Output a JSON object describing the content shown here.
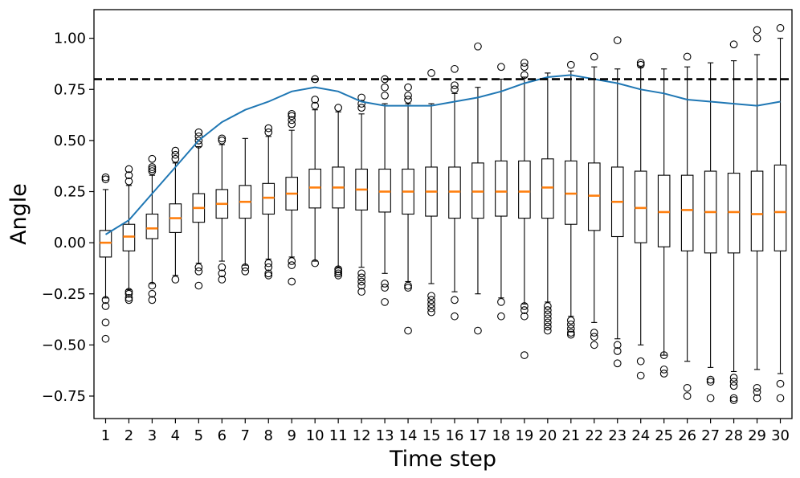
{
  "chart_data": {
    "type": "box",
    "xlabel": "Time step",
    "ylabel": "Angle",
    "ylim": [
      -0.86,
      1.14
    ],
    "xlim": [
      0.5,
      30.5
    ],
    "grid": false,
    "x_ticks": [
      1,
      2,
      3,
      4,
      5,
      6,
      7,
      8,
      9,
      10,
      11,
      12,
      13,
      14,
      15,
      16,
      17,
      18,
      19,
      20,
      21,
      22,
      23,
      24,
      25,
      26,
      27,
      28,
      29,
      30
    ],
    "y_ticks": [
      -0.75,
      -0.5,
      -0.25,
      0.0,
      0.25,
      0.5,
      0.75,
      1.0
    ],
    "y_tick_labels": [
      "−0.75",
      "−0.50",
      "−0.25",
      "0.00",
      "0.25",
      "0.50",
      "0.75",
      "1.00"
    ],
    "colors": {
      "box": "#000000",
      "median": "#ff7f0e",
      "line": "#1f77b4",
      "reference": "#000000"
    },
    "reference_line": {
      "y": 0.8,
      "style": "dashed"
    },
    "line_series": {
      "x": [
        1,
        2,
        3,
        4,
        5,
        6,
        7,
        8,
        9,
        10,
        11,
        12,
        13,
        14,
        15,
        16,
        17,
        18,
        19,
        20,
        21,
        22,
        23,
        24,
        25,
        26,
        27,
        28,
        29,
        30
      ],
      "y": [
        0.04,
        0.11,
        0.24,
        0.37,
        0.5,
        0.59,
        0.65,
        0.69,
        0.74,
        0.76,
        0.74,
        0.69,
        0.67,
        0.67,
        0.67,
        0.69,
        0.71,
        0.74,
        0.78,
        0.81,
        0.82,
        0.8,
        0.78,
        0.75,
        0.73,
        0.7,
        0.69,
        0.68,
        0.67,
        0.69
      ]
    },
    "boxes": [
      {
        "x": 1,
        "q1": -0.07,
        "median": 0.0,
        "q3": 0.06,
        "whislo": -0.27,
        "whishi": 0.26,
        "fliers": [
          0.31,
          0.32,
          -0.28,
          -0.31,
          -0.39,
          -0.47
        ]
      },
      {
        "x": 2,
        "q1": -0.04,
        "median": 0.03,
        "q3": 0.09,
        "whislo": -0.23,
        "whishi": 0.28,
        "fliers": [
          0.3,
          0.33,
          0.36,
          -0.24,
          -0.25,
          -0.27,
          -0.28
        ]
      },
      {
        "x": 3,
        "q1": 0.02,
        "median": 0.07,
        "q3": 0.14,
        "whislo": -0.2,
        "whishi": 0.33,
        "fliers": [
          0.35,
          0.36,
          0.37,
          0.41,
          -0.21,
          -0.25,
          -0.28
        ]
      },
      {
        "x": 4,
        "q1": 0.05,
        "median": 0.12,
        "q3": 0.19,
        "whislo": -0.16,
        "whishi": 0.39,
        "fliers": [
          0.41,
          0.43,
          0.45,
          -0.18
        ]
      },
      {
        "x": 5,
        "q1": 0.1,
        "median": 0.17,
        "q3": 0.24,
        "whislo": -0.1,
        "whishi": 0.47,
        "fliers": [
          0.48,
          0.5,
          0.52,
          0.54,
          -0.12,
          -0.14,
          -0.21
        ]
      },
      {
        "x": 6,
        "q1": 0.12,
        "median": 0.19,
        "q3": 0.26,
        "whislo": -0.09,
        "whishi": 0.48,
        "fliers": [
          0.5,
          0.51,
          -0.12,
          -0.15,
          -0.18
        ]
      },
      {
        "x": 7,
        "q1": 0.12,
        "median": 0.2,
        "q3": 0.28,
        "whislo": -0.11,
        "whishi": 0.51,
        "fliers": [
          -0.12,
          -0.14
        ]
      },
      {
        "x": 8,
        "q1": 0.14,
        "median": 0.22,
        "q3": 0.29,
        "whislo": -0.08,
        "whishi": 0.52,
        "fliers": [
          0.54,
          0.56,
          -0.1,
          -0.12,
          -0.15,
          -0.16
        ]
      },
      {
        "x": 9,
        "q1": 0.16,
        "median": 0.24,
        "q3": 0.32,
        "whislo": -0.07,
        "whishi": 0.55,
        "fliers": [
          0.58,
          0.6,
          0.62,
          0.63,
          -0.09,
          -0.11,
          -0.19
        ]
      },
      {
        "x": 10,
        "q1": 0.17,
        "median": 0.27,
        "q3": 0.36,
        "whislo": -0.09,
        "whishi": 0.65,
        "fliers": [
          0.67,
          0.7,
          0.8,
          -0.1
        ]
      },
      {
        "x": 11,
        "q1": 0.17,
        "median": 0.27,
        "q3": 0.37,
        "whislo": -0.12,
        "whishi": 0.64,
        "fliers": [
          0.66,
          -0.13,
          -0.14,
          -0.15,
          -0.16
        ]
      },
      {
        "x": 12,
        "q1": 0.16,
        "median": 0.26,
        "q3": 0.36,
        "whislo": -0.12,
        "whishi": 0.63,
        "fliers": [
          0.66,
          0.68,
          0.71,
          -0.15,
          -0.17,
          -0.19,
          -0.21,
          -0.24
        ]
      },
      {
        "x": 13,
        "q1": 0.15,
        "median": 0.25,
        "q3": 0.36,
        "whislo": -0.15,
        "whishi": 0.68,
        "fliers": [
          0.72,
          0.76,
          0.8,
          -0.2,
          -0.22,
          -0.29
        ]
      },
      {
        "x": 14,
        "q1": 0.14,
        "median": 0.25,
        "q3": 0.36,
        "whislo": -0.19,
        "whishi": 0.68,
        "fliers": [
          0.7,
          0.72,
          0.76,
          -0.21,
          -0.22,
          -0.43
        ]
      },
      {
        "x": 15,
        "q1": 0.13,
        "median": 0.25,
        "q3": 0.37,
        "whislo": -0.2,
        "whishi": 0.68,
        "fliers": [
          0.83,
          -0.26,
          -0.28,
          -0.3,
          -0.32,
          -0.34
        ]
      },
      {
        "x": 16,
        "q1": 0.12,
        "median": 0.25,
        "q3": 0.37,
        "whislo": -0.24,
        "whishi": 0.73,
        "fliers": [
          0.75,
          0.77,
          0.85,
          -0.28,
          -0.36
        ]
      },
      {
        "x": 17,
        "q1": 0.12,
        "median": 0.25,
        "q3": 0.39,
        "whislo": -0.25,
        "whishi": 0.76,
        "fliers": [
          0.96,
          -0.43
        ]
      },
      {
        "x": 18,
        "q1": 0.13,
        "median": 0.25,
        "q3": 0.4,
        "whislo": -0.27,
        "whishi": 0.8,
        "fliers": [
          0.86,
          -0.29,
          -0.36
        ]
      },
      {
        "x": 19,
        "q1": 0.12,
        "median": 0.25,
        "q3": 0.4,
        "whislo": -0.3,
        "whishi": 0.81,
        "fliers": [
          0.82,
          0.86,
          0.88,
          -0.31,
          -0.33,
          -0.36,
          -0.55
        ]
      },
      {
        "x": 20,
        "q1": 0.12,
        "median": 0.27,
        "q3": 0.41,
        "whislo": -0.29,
        "whishi": 0.83,
        "fliers": [
          -0.31,
          -0.33,
          -0.35,
          -0.37,
          -0.39,
          -0.41,
          -0.43
        ]
      },
      {
        "x": 21,
        "q1": 0.09,
        "median": 0.24,
        "q3": 0.4,
        "whislo": -0.36,
        "whishi": 0.84,
        "fliers": [
          0.87,
          -0.38,
          -0.4,
          -0.42,
          -0.44,
          -0.45
        ]
      },
      {
        "x": 22,
        "q1": 0.06,
        "median": 0.23,
        "q3": 0.39,
        "whislo": -0.39,
        "whishi": 0.86,
        "fliers": [
          0.91,
          -0.44,
          -0.46,
          -0.5
        ]
      },
      {
        "x": 23,
        "q1": 0.03,
        "median": 0.2,
        "q3": 0.37,
        "whislo": -0.47,
        "whishi": 0.85,
        "fliers": [
          0.99,
          -0.5,
          -0.53,
          -0.59
        ]
      },
      {
        "x": 24,
        "q1": 0.0,
        "median": 0.17,
        "q3": 0.35,
        "whislo": -0.5,
        "whishi": 0.86,
        "fliers": [
          0.87,
          0.88,
          -0.58,
          -0.65
        ]
      },
      {
        "x": 25,
        "q1": -0.02,
        "median": 0.15,
        "q3": 0.33,
        "whislo": -0.55,
        "whishi": 0.85,
        "fliers": [
          -0.55,
          -0.62,
          -0.64
        ]
      },
      {
        "x": 26,
        "q1": -0.04,
        "median": 0.16,
        "q3": 0.33,
        "whislo": -0.58,
        "whishi": 0.86,
        "fliers": [
          0.91,
          -0.71,
          -0.75
        ]
      },
      {
        "x": 27,
        "q1": -0.05,
        "median": 0.15,
        "q3": 0.35,
        "whislo": -0.61,
        "whishi": 0.88,
        "fliers": [
          -0.67,
          -0.68,
          -0.76
        ]
      },
      {
        "x": 28,
        "q1": -0.05,
        "median": 0.15,
        "q3": 0.34,
        "whislo": -0.63,
        "whishi": 0.89,
        "fliers": [
          0.97,
          -0.66,
          -0.68,
          -0.7,
          -0.76,
          -0.77
        ]
      },
      {
        "x": 29,
        "q1": -0.04,
        "median": 0.14,
        "q3": 0.35,
        "whislo": -0.62,
        "whishi": 0.92,
        "fliers": [
          1.0,
          1.04,
          -0.71,
          -0.73,
          -0.76
        ]
      },
      {
        "x": 30,
        "q1": -0.04,
        "median": 0.15,
        "q3": 0.38,
        "whislo": -0.64,
        "whishi": 1.0,
        "fliers": [
          1.05,
          -0.69,
          -0.76
        ]
      }
    ]
  }
}
